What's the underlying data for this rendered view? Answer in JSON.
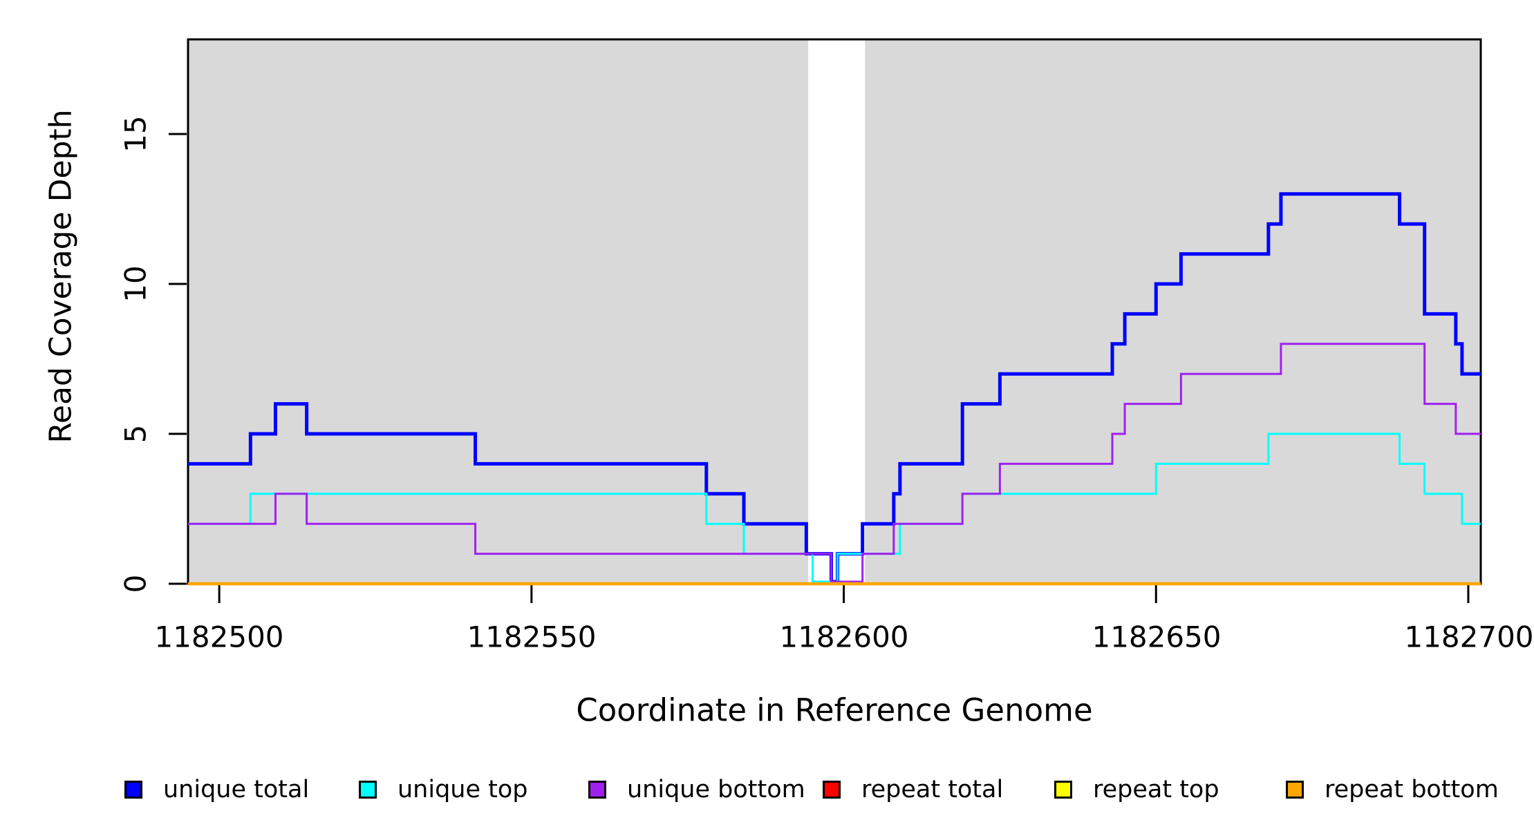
{
  "chart_data": {
    "type": "line",
    "step_type": "s",
    "title": "",
    "xlabel": "Coordinate in Reference Genome",
    "ylabel": "Read Coverage Depth",
    "x_range": [
      1182495,
      1182702
    ],
    "y_range": [
      0,
      18.2
    ],
    "grid": "off",
    "plot_background": "#d9d9d9",
    "gap_band": {
      "color": "#ffffff",
      "start": 1182594.3,
      "end": 1182603.4
    },
    "x_ticks": [
      1182500,
      1182550,
      1182600,
      1182650,
      1182700
    ],
    "x_tick_labels": [
      "1182500",
      "1182550",
      "1182600",
      "1182650",
      "1182700"
    ],
    "y_ticks": [
      0,
      5,
      10,
      15
    ],
    "y_tick_labels": [
      "0",
      "5",
      "10",
      "15"
    ],
    "series": [
      {
        "name": "unique total",
        "color": "#0000ff",
        "width": 5,
        "start_value": 4,
        "steps": [
          [
            1182505,
            5
          ],
          [
            1182509,
            6
          ],
          [
            1182514,
            5
          ],
          [
            1182541,
            4
          ],
          [
            1182578,
            3
          ],
          [
            1182584,
            2
          ],
          [
            1182594,
            1
          ],
          [
            1182598,
            0
          ],
          [
            1182599,
            1
          ],
          [
            1182603,
            2
          ],
          [
            1182608,
            3
          ],
          [
            1182609,
            4
          ],
          [
            1182619,
            6
          ],
          [
            1182625,
            7
          ],
          [
            1182643,
            8
          ],
          [
            1182645,
            9
          ],
          [
            1182650,
            10
          ],
          [
            1182654,
            11
          ],
          [
            1182668,
            12
          ],
          [
            1182670,
            13
          ],
          [
            1182689,
            12
          ],
          [
            1182693,
            9
          ],
          [
            1182698,
            8
          ],
          [
            1182699,
            7
          ]
        ]
      },
      {
        "name": "unique top",
        "color": "#00ffff",
        "width": 3,
        "start_value": 2,
        "steps": [
          [
            1182505,
            3
          ],
          [
            1182578,
            2
          ],
          [
            1182584,
            1
          ],
          [
            1182595,
            0
          ],
          [
            1182599,
            1
          ],
          [
            1182609,
            2
          ],
          [
            1182619,
            3
          ],
          [
            1182650,
            4
          ],
          [
            1182668,
            5
          ],
          [
            1182689,
            4
          ],
          [
            1182693,
            3
          ],
          [
            1182699,
            2
          ]
        ]
      },
      {
        "name": "unique bottom",
        "color": "#a020f0",
        "width": 3,
        "start_value": 2,
        "steps": [
          [
            1182509,
            3
          ],
          [
            1182514,
            2
          ],
          [
            1182541,
            1
          ],
          [
            1182598,
            0
          ],
          [
            1182603,
            1
          ],
          [
            1182608,
            2
          ],
          [
            1182619,
            3
          ],
          [
            1182625,
            4
          ],
          [
            1182643,
            5
          ],
          [
            1182645,
            6
          ],
          [
            1182654,
            7
          ],
          [
            1182670,
            8
          ],
          [
            1182693,
            6
          ],
          [
            1182698,
            5
          ]
        ]
      },
      {
        "name": "repeat total",
        "color": "#ff0000",
        "width": 3,
        "start_value": 0,
        "steps": []
      },
      {
        "name": "repeat top",
        "color": "#ffff00",
        "width": 3,
        "start_value": 0,
        "steps": []
      },
      {
        "name": "repeat bottom",
        "color": "#ffa500",
        "width": 4.5,
        "start_value": 0,
        "steps": []
      }
    ],
    "legend": {
      "position": "bottom",
      "entries": [
        {
          "label": "unique total",
          "color": "#0000ff"
        },
        {
          "label": "unique top",
          "color": "#00ffff"
        },
        {
          "label": "unique bottom",
          "color": "#a020f0"
        },
        {
          "label": "repeat total",
          "color": "#ff0000"
        },
        {
          "label": "repeat top",
          "color": "#ffff00"
        },
        {
          "label": "repeat bottom",
          "color": "#ffa500"
        }
      ]
    }
  }
}
